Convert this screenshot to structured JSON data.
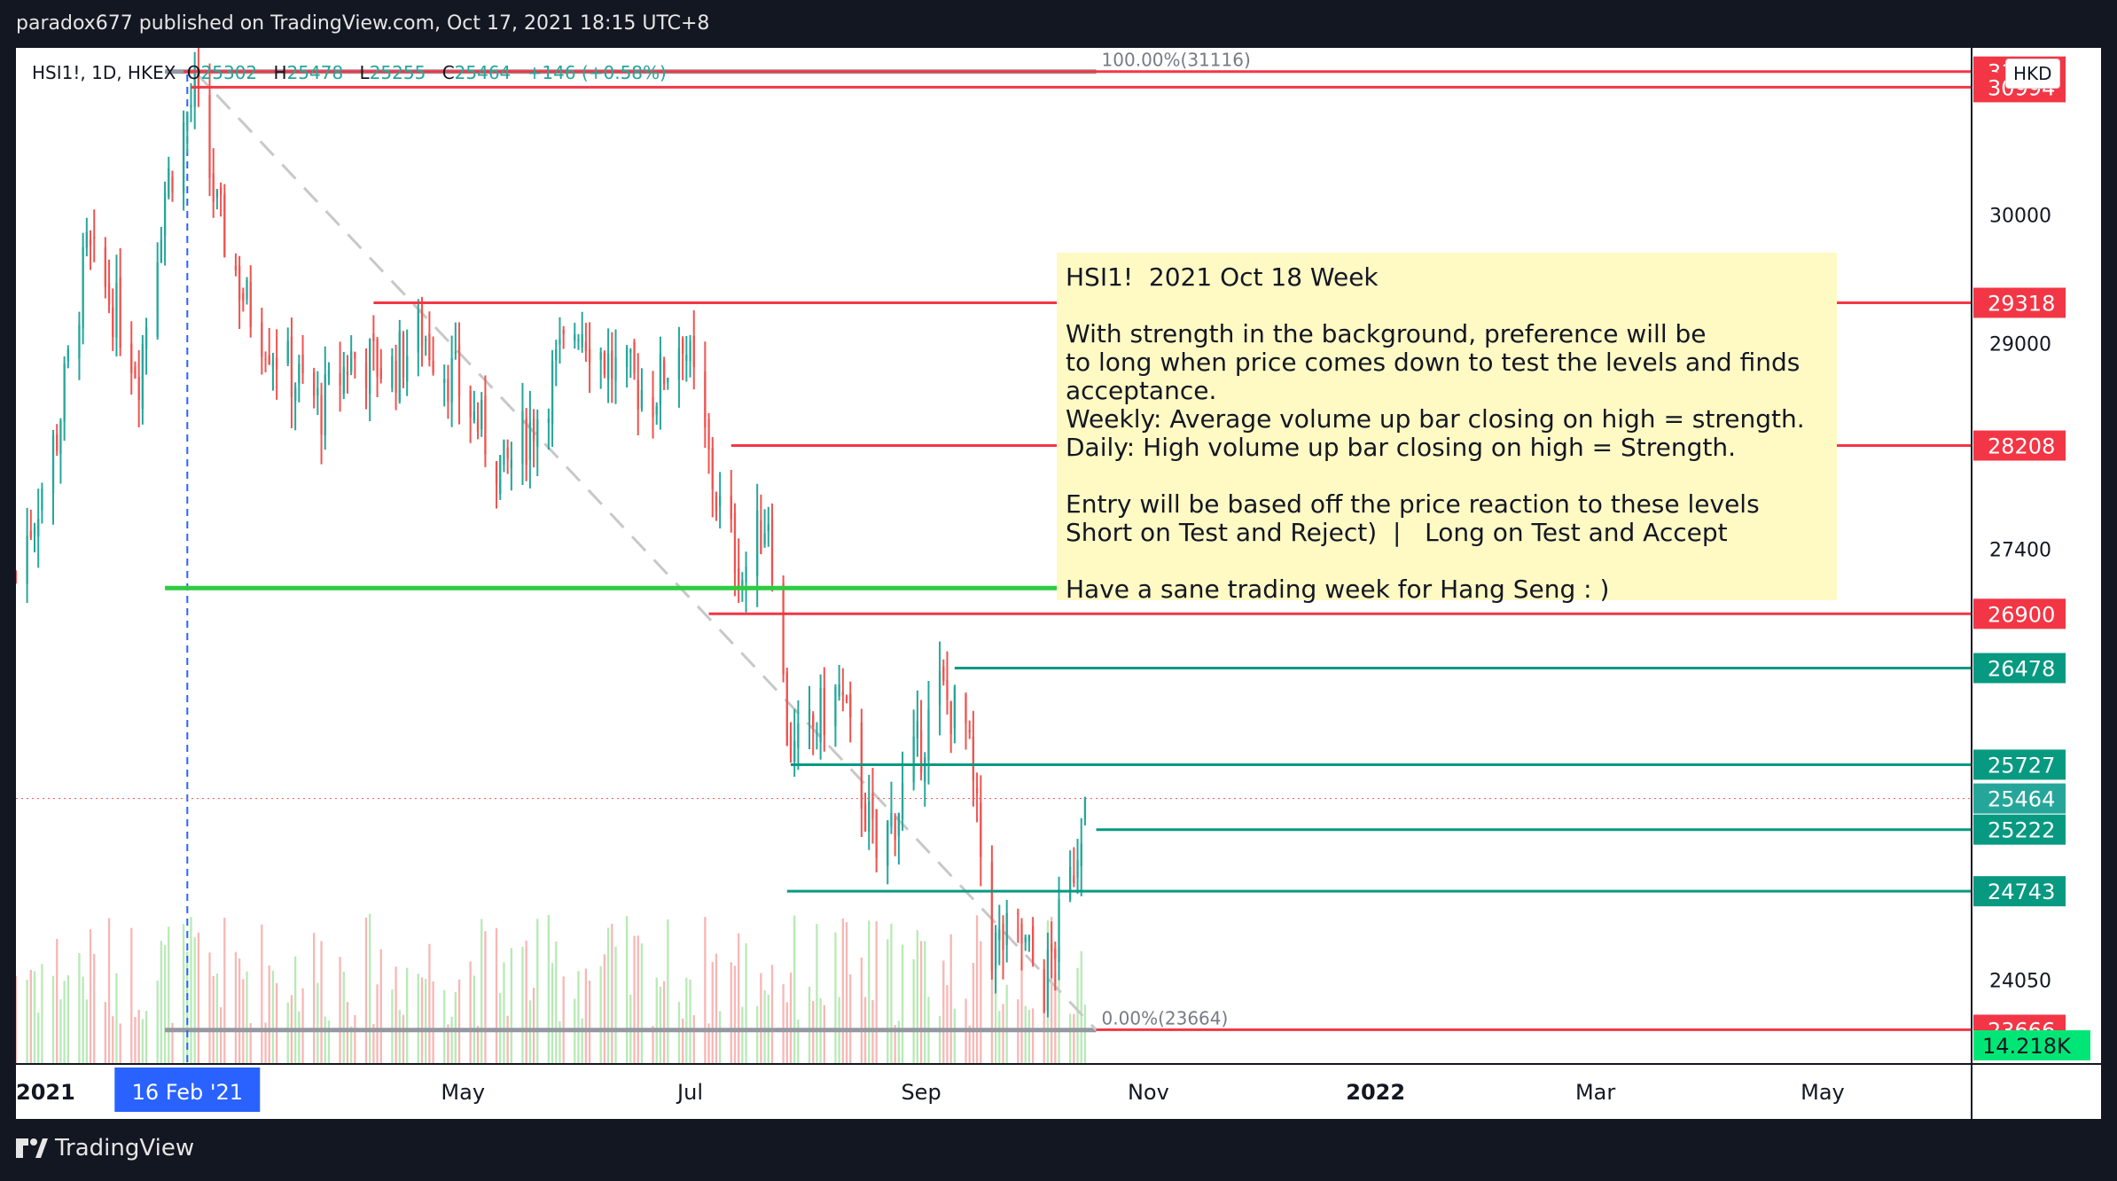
{
  "header": {
    "publisher_line": "paradox677 published on TradingView.com, Oct 17, 2021 18:15 UTC+8"
  },
  "footer": {
    "brand": "TradingView"
  },
  "legend": {
    "symbol": "HSI1!, 1D, HKEX",
    "open_label": "O",
    "open": "25302",
    "high_label": "H",
    "high": "25478",
    "low_label": "L",
    "low": "25255",
    "close_label": "C",
    "close": "25464",
    "change": "+146 (+0.58%)"
  },
  "currency": "HKD",
  "note": {
    "lines": [
      "HSI1!  2021 Oct 18 Week",
      "",
      "With strength in the background, preference will be",
      "to long when price comes down to test the levels and finds",
      "acceptance.",
      "Weekly: Average volume up bar closing on high = strength.",
      "Daily: High volume up bar closing on high = Strength.",
      "",
      "Entry will be based off the price reaction to these levels",
      "Short on Test and Reject)  |   Long on Test and Accept",
      "",
      "Have a sane trading week for Hang Seng : )"
    ]
  },
  "fib": {
    "top_label": "100.00%(31116)",
    "bottom_label": "0.00%(23664)"
  },
  "crosshair_date": "16 Feb '21",
  "volume_label": "14.218K",
  "colors": {
    "up": "#26a69a",
    "down": "#ef5350",
    "red_level": "#f23645",
    "teal_level": "#089981",
    "green_level": "#2ecc40",
    "fib_line": "#9598a1",
    "crosshair": "#2962ff",
    "vol_up": "#b7eab5",
    "vol_down": "#f7b7b5"
  },
  "chart_data": {
    "type": "candlestick",
    "title": "HSI1!, 1D, HKEX",
    "ylim": [
      23400,
      31300
    ],
    "y_ticks": [
      "30000",
      "29000",
      "27400",
      "24050"
    ],
    "x_ticks": [
      "2021",
      "May",
      "Jul",
      "Sep",
      "Nov",
      "2022",
      "Mar",
      "May"
    ],
    "x_tick_dates": [
      "2021-01-01",
      "2021-05-01",
      "2021-07-01",
      "2021-09-01",
      "2021-11-01",
      "2022-01-01",
      "2022-03-01",
      "2022-05-01"
    ],
    "x_range": [
      "2021-01-01",
      "2022-06-10"
    ],
    "levels": [
      {
        "value": 31116,
        "label": "31116",
        "color": "red",
        "from": "2021-02-15"
      },
      {
        "value": 30994,
        "label": "30994",
        "color": "red",
        "from": "2021-02-17"
      },
      {
        "value": 29318,
        "label": "29318",
        "color": "red",
        "from": "2021-04-07"
      },
      {
        "value": 28208,
        "label": "28208",
        "color": "red",
        "from": "2021-07-12"
      },
      {
        "value": 27100,
        "label": "",
        "color": "green",
        "from": "2021-02-10",
        "to": "2021-10-18"
      },
      {
        "value": 26900,
        "label": "26900",
        "color": "red",
        "from": "2021-07-06"
      },
      {
        "value": 26478,
        "label": "26478",
        "color": "teal",
        "from": "2021-09-10"
      },
      {
        "value": 25727,
        "label": "25727",
        "color": "teal",
        "from": "2021-07-28"
      },
      {
        "value": 25464,
        "label": "25464",
        "color": "last",
        "from": "2021-01-01"
      },
      {
        "value": 25222,
        "label": "25222",
        "color": "teal",
        "from": "2021-10-18"
      },
      {
        "value": 24743,
        "label": "24743",
        "color": "teal",
        "from": "2021-07-27"
      },
      {
        "value": 23666,
        "label": "23666",
        "color": "red",
        "from": "2021-10-18"
      }
    ],
    "fib_lines": [
      {
        "value": 31116,
        "from": "2021-02-10",
        "to": "2021-10-18"
      },
      {
        "value": 23664,
        "from": "2021-02-10",
        "to": "2021-10-18"
      }
    ],
    "trend_line": {
      "from": [
        "2021-02-18",
        31116
      ],
      "to": [
        "2021-10-18",
        23664
      ]
    },
    "crosshair_x": "2021-02-16",
    "last_close": 25464,
    "ohlc_anchors": [
      [
        "2021-01-01",
        27200
      ],
      [
        "2021-01-12",
        28300
      ],
      [
        "2021-01-20",
        29700
      ],
      [
        "2021-01-27",
        29300
      ],
      [
        "2021-02-03",
        28800
      ],
      [
        "2021-02-10",
        30200
      ],
      [
        "2021-02-18",
        30950
      ],
      [
        "2021-02-24",
        30000
      ],
      [
        "2021-03-04",
        29300
      ],
      [
        "2021-03-15",
        28800
      ],
      [
        "2021-03-24",
        28500
      ],
      [
        "2021-04-01",
        28900
      ],
      [
        "2021-04-12",
        28800
      ],
      [
        "2021-04-20",
        29100
      ],
      [
        "2021-04-29",
        28700
      ],
      [
        "2021-05-12",
        28000
      ],
      [
        "2021-05-20",
        28400
      ],
      [
        "2021-06-01",
        29200
      ],
      [
        "2021-06-10",
        28800
      ],
      [
        "2021-06-21",
        28600
      ],
      [
        "2021-06-29",
        29100
      ],
      [
        "2021-07-08",
        27800
      ],
      [
        "2021-07-15",
        27200
      ],
      [
        "2021-07-22",
        27700
      ],
      [
        "2021-07-27",
        26000
      ],
      [
        "2021-07-29",
        25800
      ],
      [
        "2021-08-10",
        26300
      ],
      [
        "2021-08-20",
        25000
      ],
      [
        "2021-08-27",
        25500
      ],
      [
        "2021-09-06",
        26300
      ],
      [
        "2021-09-13",
        26000
      ],
      [
        "2021-09-20",
        24300
      ],
      [
        "2021-09-27",
        24400
      ],
      [
        "2021-10-04",
        24000
      ],
      [
        "2021-10-11",
        24800
      ],
      [
        "2021-10-15",
        25464
      ]
    ]
  }
}
